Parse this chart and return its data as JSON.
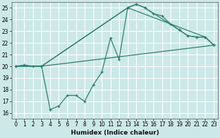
{
  "xlabel": "Humidex (Indice chaleur)",
  "background_color": "#cce8e8",
  "grid_color": "#ffffff",
  "line_color": "#2e7d6e",
  "xlim": [
    -0.5,
    23.5
  ],
  "ylim": [
    15.5,
    25.5
  ],
  "xticks": [
    0,
    1,
    2,
    3,
    4,
    5,
    6,
    7,
    8,
    9,
    10,
    11,
    12,
    13,
    14,
    15,
    16,
    17,
    18,
    19,
    20,
    21,
    22,
    23
  ],
  "yticks": [
    16,
    17,
    18,
    19,
    20,
    21,
    22,
    23,
    24,
    25
  ],
  "lines": [
    {
      "x": [
        0,
        1,
        2,
        3,
        4,
        5,
        6,
        7,
        8,
        9,
        10,
        11,
        12,
        13,
        14,
        15,
        16,
        17,
        18,
        19,
        20,
        21,
        22,
        23
      ],
      "y": [
        20,
        20.1,
        20,
        20,
        16.3,
        16.6,
        17.5,
        17.5,
        17,
        18.4,
        19.5,
        22.4,
        20.6,
        25,
        25.3,
        25,
        24.5,
        24.3,
        23.6,
        23.1,
        22.6,
        22.5,
        22.5,
        21.8
      ],
      "markers": true
    },
    {
      "x": [
        0,
        3,
        13,
        14,
        15,
        19,
        20,
        21,
        22,
        23
      ],
      "y": [
        20,
        20,
        25,
        25.3,
        25,
        23.1,
        22.6,
        22.5,
        22.5,
        21.8
      ],
      "markers": true
    },
    {
      "x": [
        0,
        3,
        13,
        22,
        23
      ],
      "y": [
        20,
        20,
        25,
        22.5,
        21.8
      ],
      "markers": false
    },
    {
      "x": [
        0,
        3,
        23
      ],
      "y": [
        20,
        20,
        21.8
      ],
      "markers": false
    }
  ]
}
